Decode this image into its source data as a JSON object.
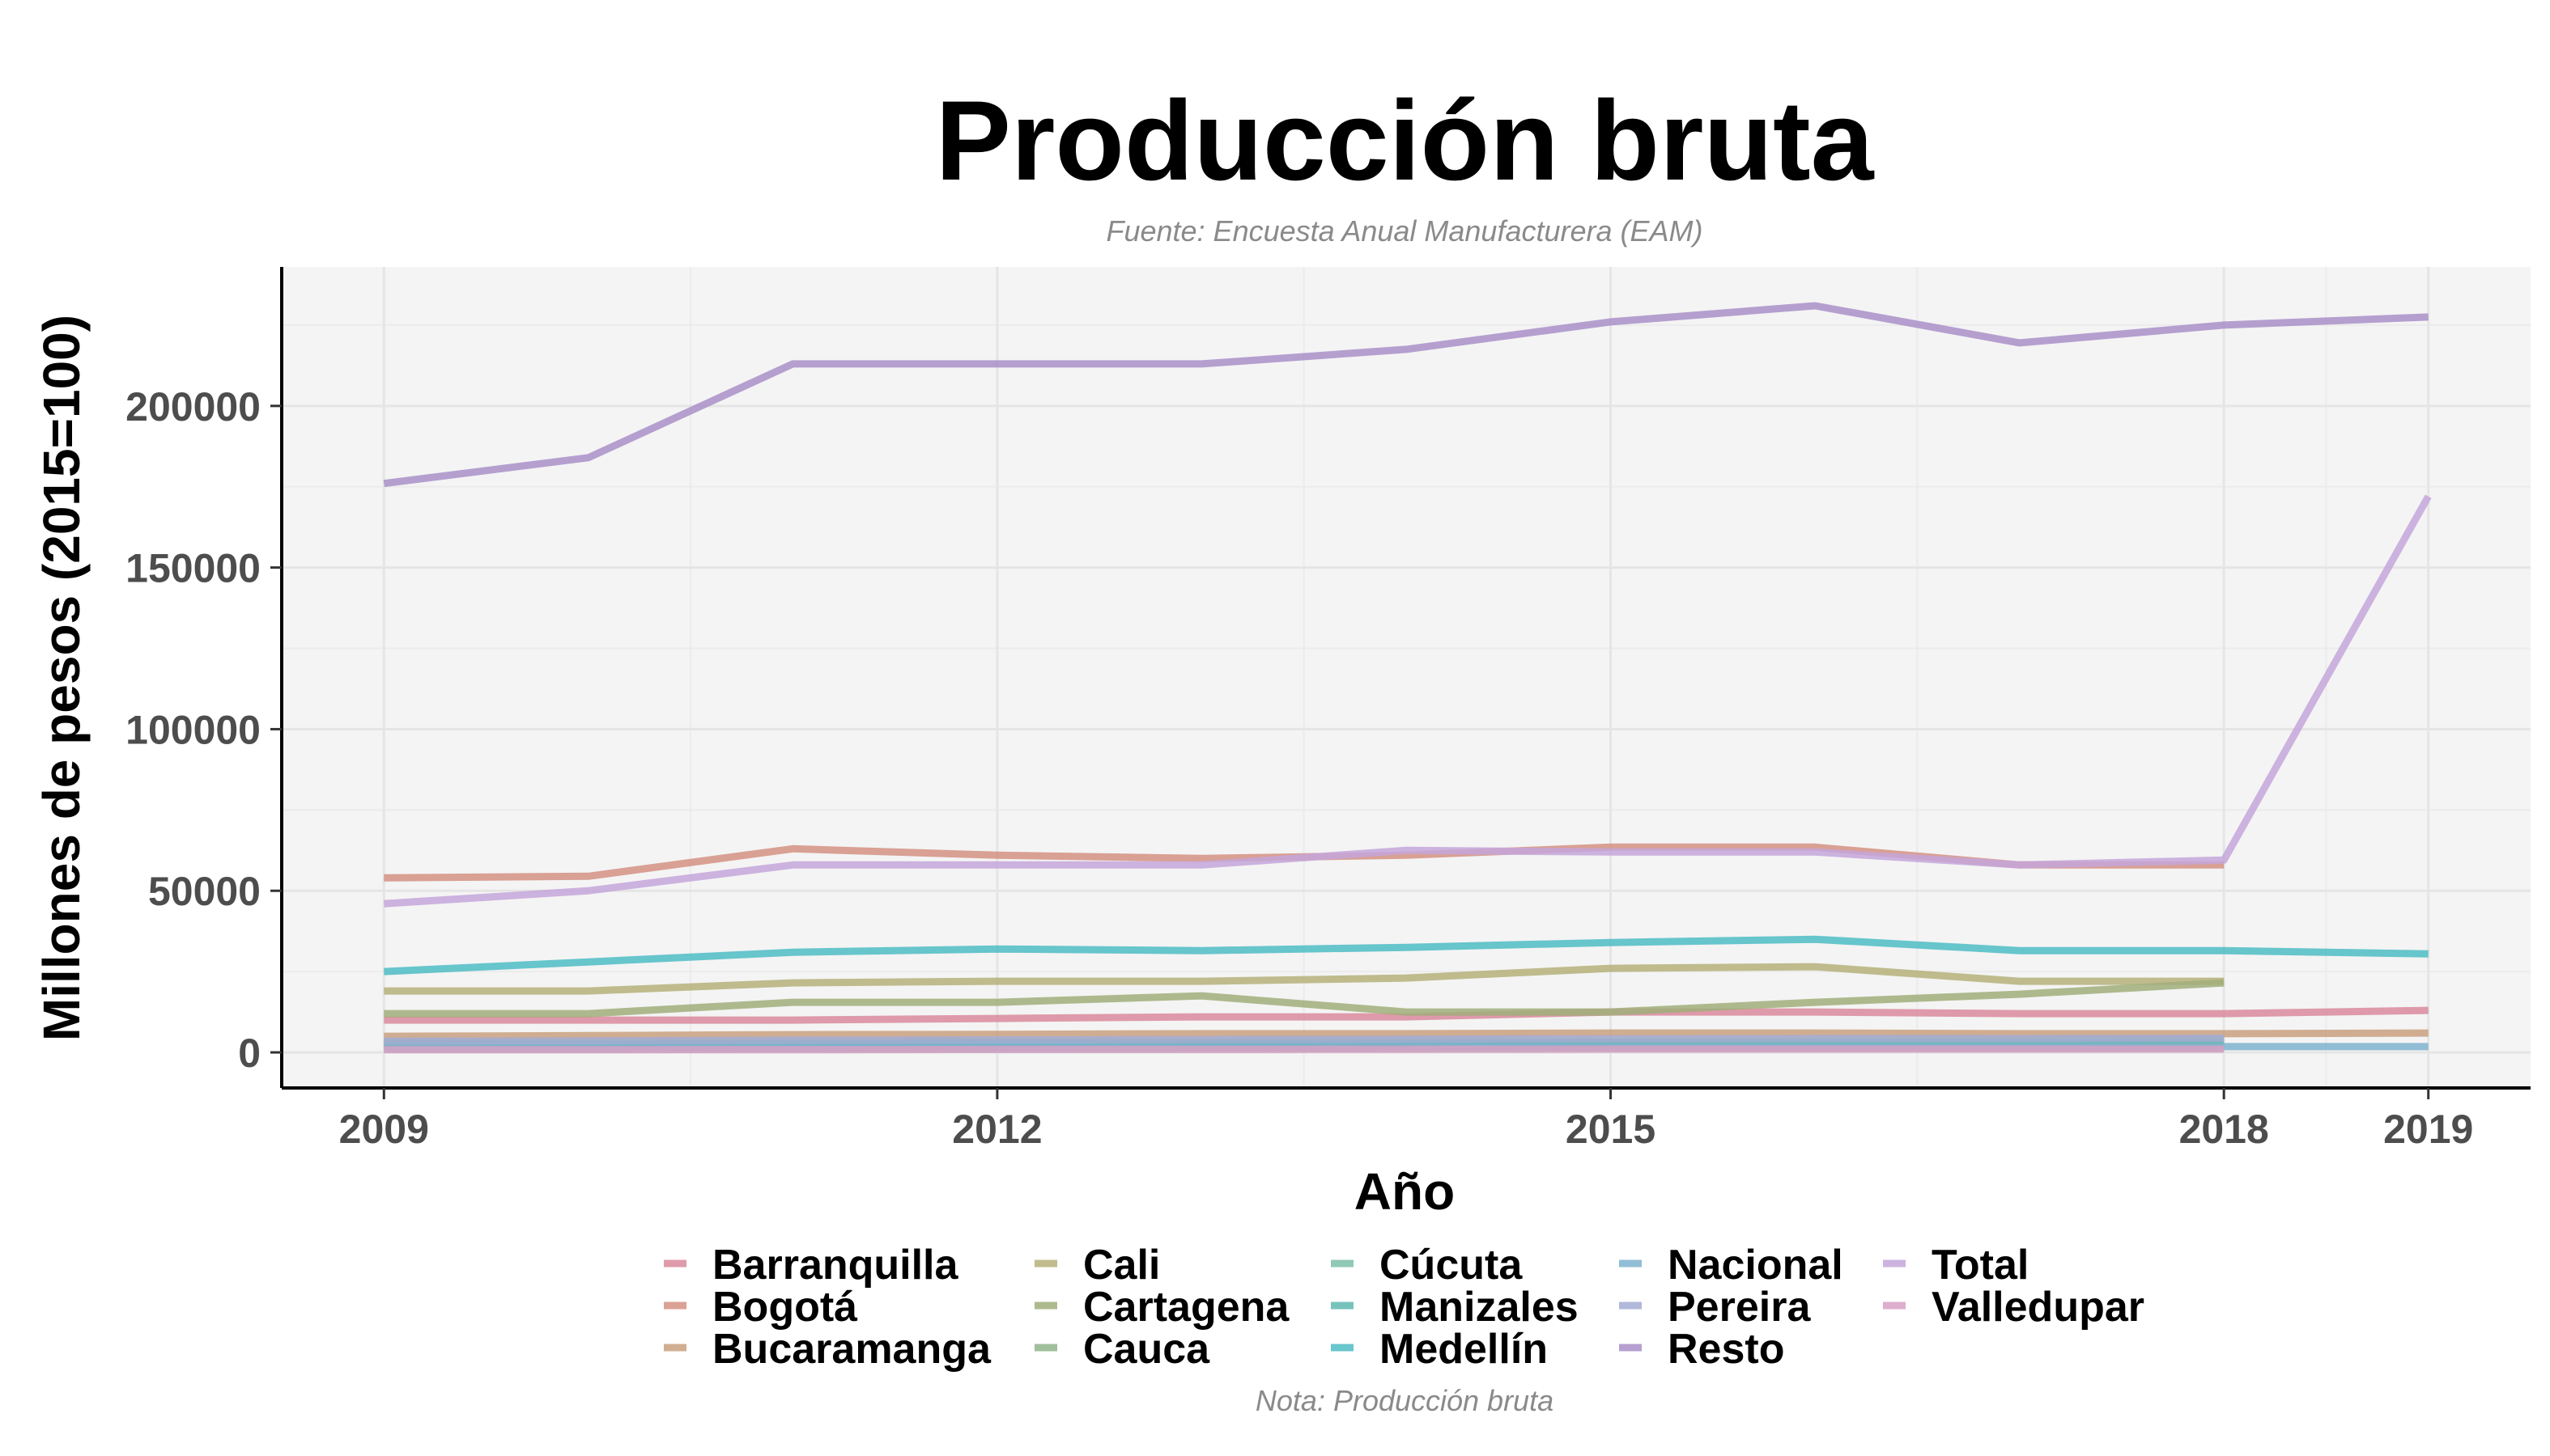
{
  "chart_data": {
    "type": "line",
    "title": "Producción bruta",
    "subtitle": "Fuente: Encuesta Anual Manufacturera (EAM)",
    "caption": "Nota: Producción bruta",
    "xlabel": "Año",
    "ylabel": "Millones de pesos (2015=100)",
    "xlim": [
      2008.5,
      2019.5
    ],
    "ylim": [
      -11000,
      243000
    ],
    "x_ticks": [
      2009,
      2012,
      2015,
      2018,
      2019
    ],
    "y_ticks": [
      0,
      50000,
      100000,
      150000,
      200000
    ],
    "grid": true,
    "legend_position": "bottom",
    "x": [
      2009,
      2010,
      2011,
      2012,
      2013,
      2014,
      2015,
      2016,
      2017,
      2018,
      2019
    ],
    "series": [
      {
        "name": "Barranquilla",
        "color": "#d98a9c",
        "values": [
          10000,
          10000,
          10000,
          10500,
          11000,
          11000,
          12500,
          12500,
          12000,
          12000,
          13000
        ]
      },
      {
        "name": "Bogotá",
        "color": "#d39182",
        "values": [
          54000,
          54500,
          63000,
          61000,
          60000,
          61000,
          63500,
          63500,
          58000,
          58000,
          null
        ]
      },
      {
        "name": "Bucaramanga",
        "color": "#c9a07f",
        "values": [
          5000,
          5200,
          5500,
          5600,
          5800,
          5800,
          6000,
          6000,
          5800,
          5800,
          6000
        ]
      },
      {
        "name": "Cali",
        "color": "#b5b07a",
        "values": [
          19000,
          19000,
          21500,
          22000,
          22000,
          23000,
          26000,
          26500,
          22000,
          22000,
          null
        ]
      },
      {
        "name": "Cartagena",
        "color": "#a0ae7a",
        "values": [
          12000,
          12000,
          15500,
          15500,
          17500,
          12500,
          12500,
          15500,
          18000,
          21500,
          null
        ]
      },
      {
        "name": "Cauca",
        "color": "#8fb48a",
        "values": [
          3000,
          3000,
          3200,
          3300,
          3400,
          3500,
          3500,
          3600,
          3600,
          3700,
          null
        ]
      },
      {
        "name": "Cúcuta",
        "color": "#7dbfa8",
        "values": [
          1000,
          1000,
          1100,
          1100,
          1200,
          1200,
          1300,
          1300,
          1300,
          1300,
          null
        ]
      },
      {
        "name": "Manizales",
        "color": "#5fb9b0",
        "values": [
          2500,
          2500,
          2700,
          2800,
          2800,
          2900,
          3000,
          3000,
          3000,
          3100,
          null
        ]
      },
      {
        "name": "Medellín",
        "color": "#4ebcc4",
        "values": [
          25000,
          28000,
          31000,
          32000,
          31500,
          32500,
          34000,
          35000,
          31500,
          31500,
          30500
        ]
      },
      {
        "name": "Nacional",
        "color": "#7fb1cf",
        "values": [
          1500,
          1500,
          1600,
          1700,
          1700,
          1800,
          1800,
          1800,
          1800,
          1800,
          1800
        ]
      },
      {
        "name": "Pereira",
        "color": "#a4acd2",
        "values": [
          3500,
          3600,
          3800,
          3900,
          4000,
          4100,
          4200,
          4300,
          4300,
          4400,
          null
        ]
      },
      {
        "name": "Resto",
        "color": "#a98fc8",
        "values": [
          176000,
          184000,
          213000,
          213000,
          213000,
          217500,
          226000,
          231000,
          219500,
          225000,
          227500
        ]
      },
      {
        "name": "Total",
        "color": "#c4a6da",
        "values": [
          46000,
          50000,
          58000,
          58000,
          58000,
          62500,
          62000,
          62000,
          58000,
          59500,
          172000
        ]
      },
      {
        "name": "Valledupar",
        "color": "#d7a0c4",
        "values": [
          800,
          800,
          850,
          900,
          900,
          950,
          1000,
          1000,
          1000,
          1000,
          null
        ]
      }
    ]
  }
}
